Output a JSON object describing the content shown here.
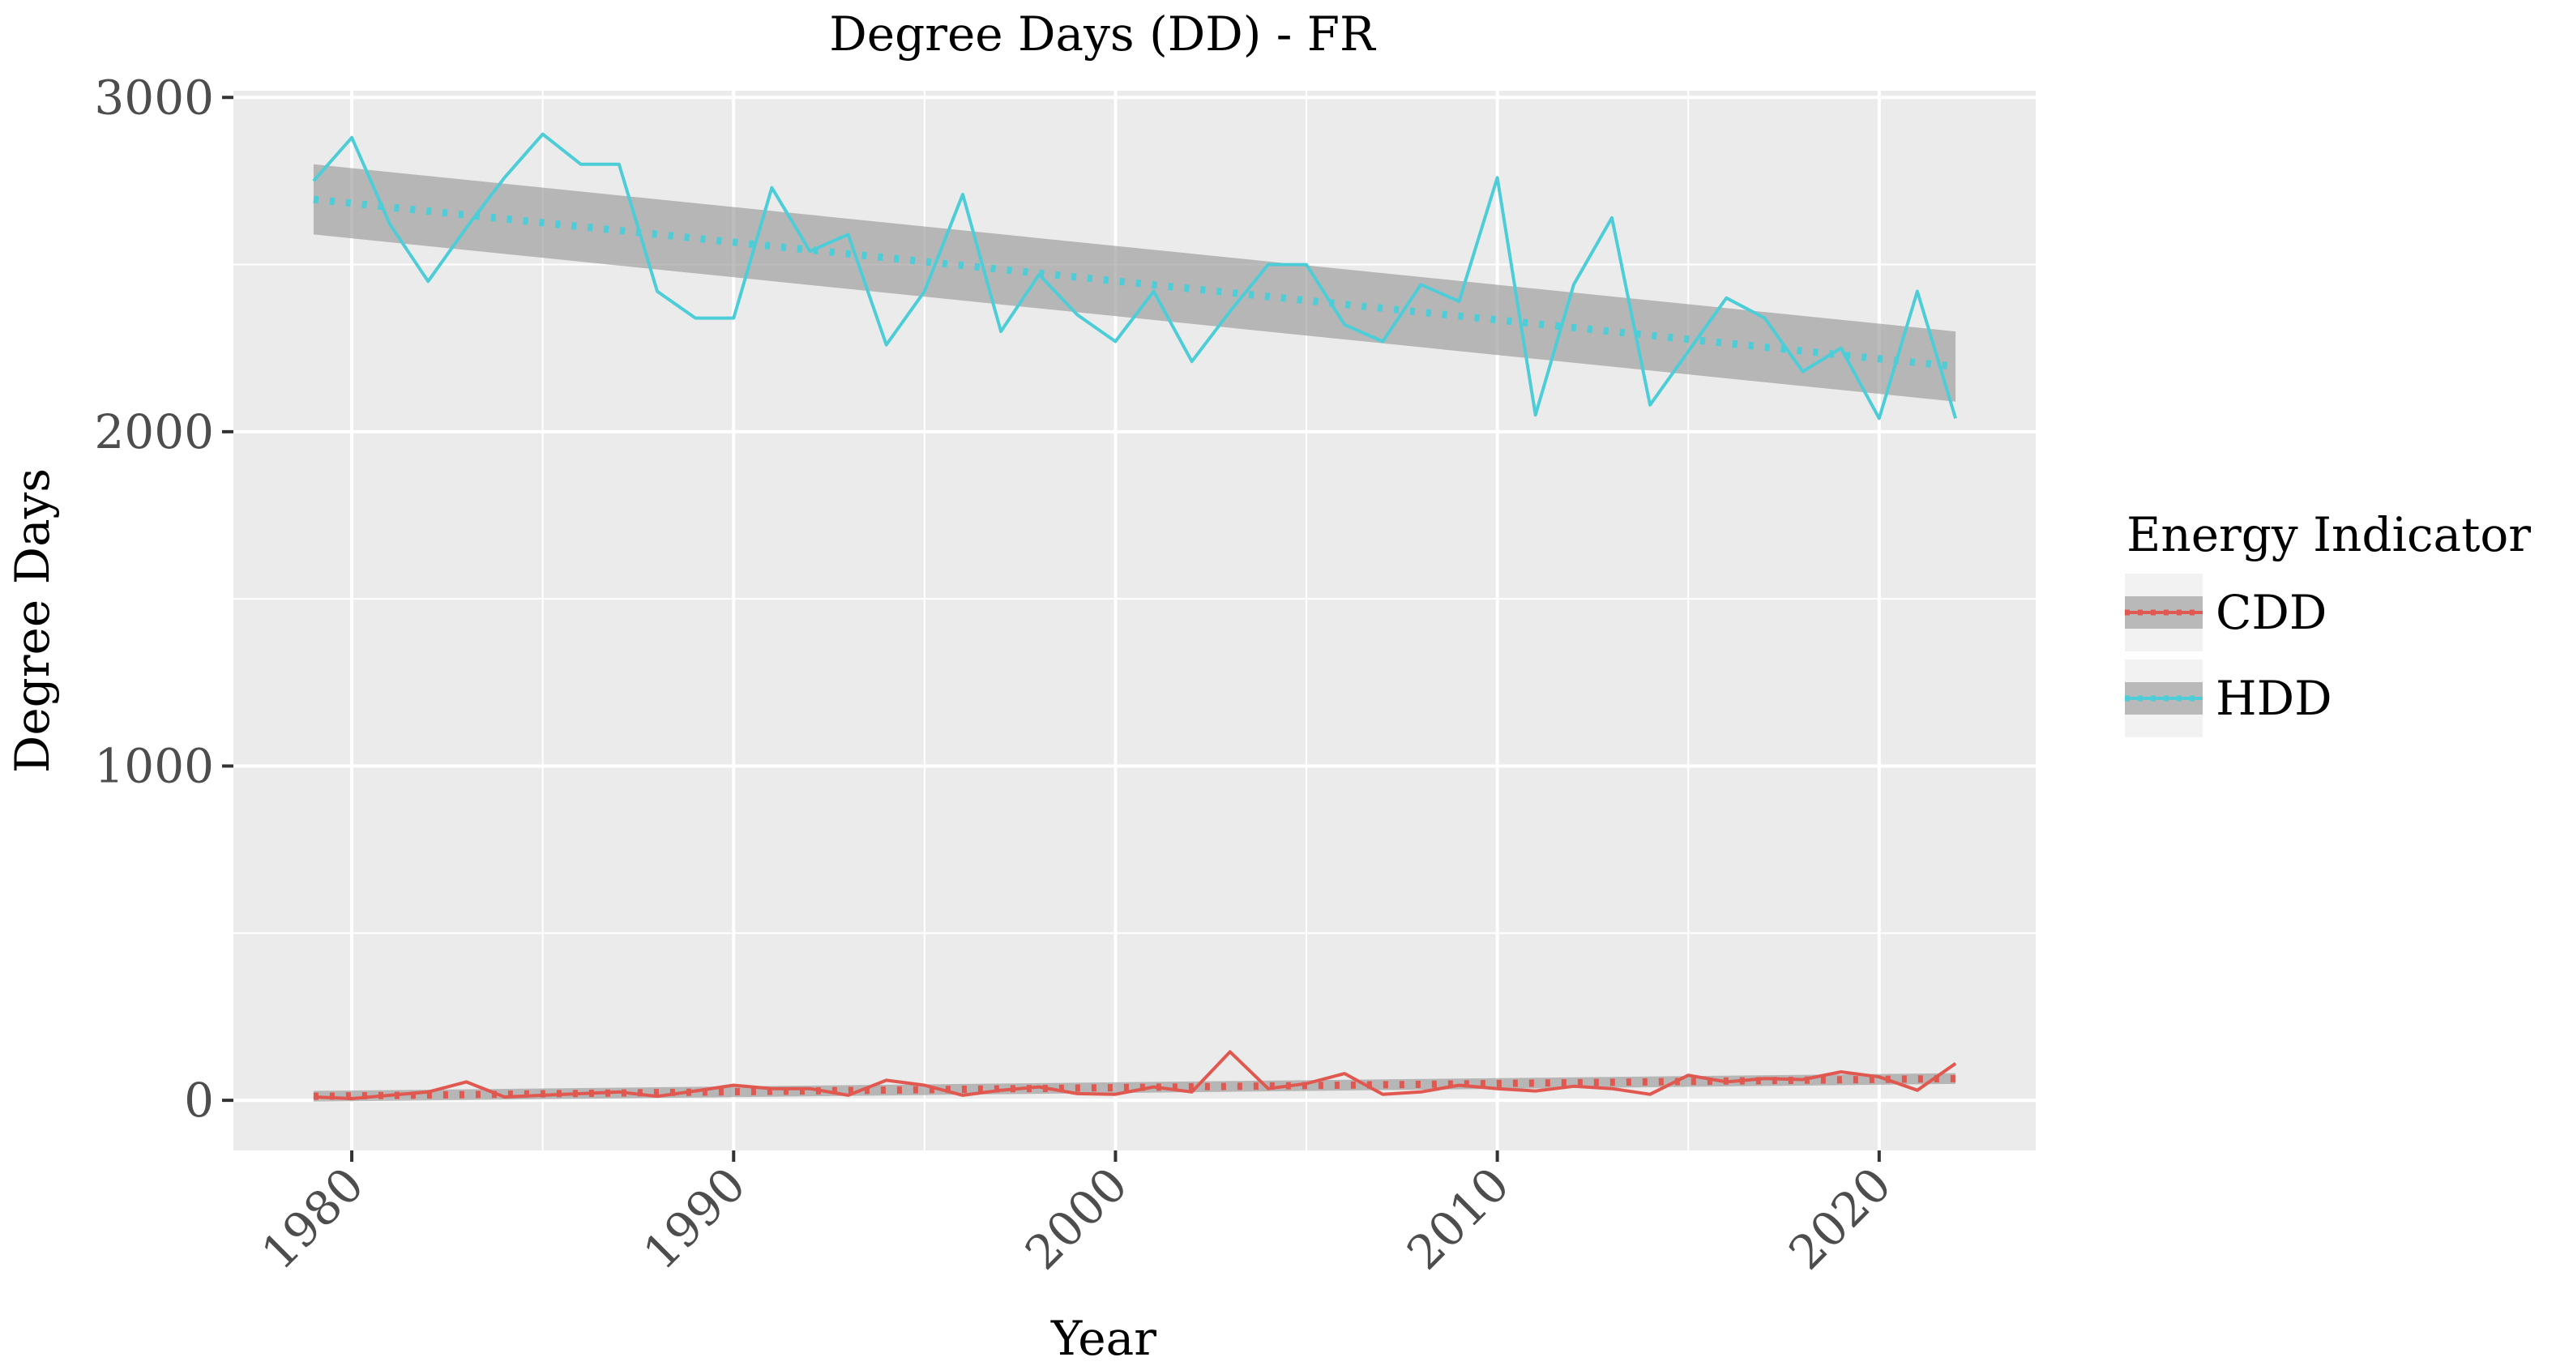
{
  "chart_data": {
    "type": "line",
    "title": "Degree Days (DD) - FR",
    "xlabel": "Year",
    "ylabel": "Degree Days",
    "xlim": [
      1976.9,
      2024.1
    ],
    "ylim": [
      -150,
      3020
    ],
    "x_ticks": [
      1980,
      1990,
      2000,
      2010,
      2020
    ],
    "y_ticks": [
      0,
      1000,
      2000,
      3000
    ],
    "x_tick_labels": [
      "1980",
      "1990",
      "2000",
      "2010",
      "2020"
    ],
    "y_tick_labels": [
      "0",
      "1000",
      "2000",
      "3000"
    ],
    "grid": true,
    "legend_position": "right",
    "legend_title": "Energy Indicator",
    "x": [
      1979,
      1980,
      1981,
      1982,
      1983,
      1984,
      1985,
      1986,
      1987,
      1988,
      1989,
      1990,
      1991,
      1992,
      1993,
      1994,
      1995,
      1996,
      1997,
      1998,
      1999,
      2000,
      2001,
      2002,
      2003,
      2004,
      2005,
      2006,
      2007,
      2008,
      2009,
      2010,
      2011,
      2012,
      2013,
      2014,
      2015,
      2016,
      2017,
      2018,
      2019,
      2020,
      2021,
      2022
    ],
    "series": [
      {
        "name": "CDD",
        "color": "#E0584F",
        "values": [
          10,
          5,
          15,
          25,
          55,
          10,
          15,
          20,
          25,
          12,
          28,
          45,
          35,
          35,
          15,
          60,
          45,
          15,
          30,
          40,
          20,
          18,
          40,
          25,
          145,
          35,
          50,
          80,
          18,
          25,
          45,
          35,
          28,
          42,
          35,
          18,
          75,
          55,
          65,
          62,
          85,
          70,
          30,
          110
        ],
        "trend": {
          "start": 12,
          "end": 65,
          "band_halfwidth": 16
        }
      },
      {
        "name": "HDD",
        "color": "#4CCDD7",
        "values": [
          2750,
          2880,
          2620,
          2450,
          2610,
          2760,
          2890,
          2800,
          2800,
          2420,
          2340,
          2340,
          2730,
          2540,
          2590,
          2260,
          2420,
          2710,
          2300,
          2470,
          2350,
          2270,
          2420,
          2210,
          2360,
          2500,
          2500,
          2320,
          2270,
          2440,
          2390,
          2760,
          2050,
          2440,
          2640,
          2080,
          2240,
          2400,
          2340,
          2180,
          2250,
          2040,
          2420,
          2040
        ],
        "trend": {
          "start": 2695,
          "end": 2195,
          "band_halfwidth": 105
        }
      }
    ]
  },
  "style": {
    "panel_bg": "#EBEBEB",
    "grid_color": "#FFFFFF",
    "band_color": "#999999",
    "text_color": "#4D4D4D"
  }
}
